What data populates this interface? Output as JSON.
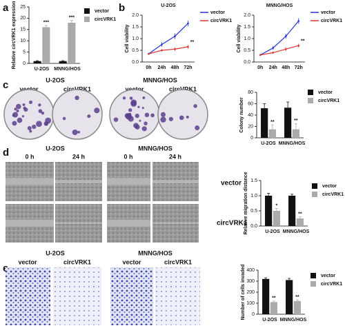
{
  "figure": {
    "panel_labels": [
      "a",
      "b",
      "c",
      "d",
      "e"
    ],
    "colony": {
      "groups": [
        "U-2OS",
        "MNNG/HOS"
      ],
      "conditions": [
        "vector",
        "circVRK1",
        "vector",
        "circVRK1"
      ]
    },
    "migration": {
      "groups": [
        "U-2OS",
        "MNNG/HOS"
      ],
      "times": [
        "0 h",
        "24 h",
        "0 h",
        "24 h"
      ],
      "rows": [
        "vector",
        "circVRK1"
      ]
    },
    "invasion": {
      "groups": [
        "U-2OS",
        "MNNG/HOS"
      ],
      "conditions": [
        "vector",
        "circVRK1",
        "vector",
        "circVRK1"
      ]
    }
  },
  "chart_data": [
    {
      "type": "bar",
      "y_label": "Relative circVRK1 expression",
      "categories": [
        "U-2OS",
        "MNNG/HOS"
      ],
      "series": [
        {
          "name": "vector",
          "color": "#111111",
          "values": [
            1,
            1
          ],
          "errors": [
            0.2,
            0.2
          ],
          "significance": [
            null,
            null
          ]
        },
        {
          "name": "circVRK1",
          "color": "#aaaaaa",
          "values": [
            16,
            18
          ],
          "errors": [
            0.8,
            1.0
          ],
          "significance": [
            "***",
            "***"
          ]
        }
      ],
      "ylim": [
        0,
        25
      ],
      "yticks": [
        0,
        5,
        10,
        15,
        20,
        25
      ]
    },
    {
      "type": "line",
      "title": "U-2OS",
      "y_label": "Cell viability",
      "categories": [
        "0h",
        "24h",
        "48h",
        "72h"
      ],
      "series": [
        {
          "name": "vector",
          "color": "#2233dd",
          "values": [
            0.35,
            0.75,
            1.1,
            1.65
          ],
          "errors": [
            0.03,
            0.1,
            0.12,
            0.12
          ],
          "significance": [
            null,
            null,
            null,
            null
          ]
        },
        {
          "name": "circVRK1",
          "color": "#e03030",
          "values": [
            0.35,
            0.5,
            0.55,
            0.65
          ],
          "errors": [
            0.03,
            0.05,
            0.08,
            0.08
          ],
          "significance": [
            null,
            null,
            null,
            "**"
          ]
        }
      ],
      "ylim": [
        0,
        2
      ],
      "yticks": [
        {
          "value": 0,
          "label": "0.0"
        },
        {
          "value": 0.5,
          "label": "0.5"
        },
        {
          "value": 1,
          "label": "1.0"
        },
        {
          "value": 1.5,
          "label": "1.5"
        },
        {
          "value": 2,
          "label": "2.0"
        }
      ]
    },
    {
      "type": "line",
      "title": "MNNG/HOS",
      "y_label": "Cell viability",
      "categories": [
        "0h",
        "24h",
        "48h",
        "72h"
      ],
      "series": [
        {
          "name": "vector",
          "color": "#2233dd",
          "values": [
            0.3,
            0.6,
            1.1,
            1.75
          ],
          "errors": [
            0.03,
            0.08,
            0.1,
            0.12
          ],
          "significance": [
            null,
            null,
            null,
            null
          ]
        },
        {
          "name": "circVRK1",
          "color": "#e03030",
          "values": [
            0.3,
            0.4,
            0.55,
            0.7
          ],
          "errors": [
            0.03,
            0.05,
            0.08,
            0.08
          ],
          "significance": [
            null,
            null,
            null,
            "**"
          ]
        }
      ],
      "ylim": [
        0,
        2
      ],
      "yticks": [
        {
          "value": 0,
          "label": "0.0"
        },
        {
          "value": 0.5,
          "label": "0.5"
        },
        {
          "value": 1,
          "label": "1.0"
        },
        {
          "value": 1.5,
          "label": "1.5"
        },
        {
          "value": 2,
          "label": "2.0"
        }
      ]
    },
    {
      "type": "bar",
      "y_label": "Colony number",
      "categories": [
        "U-2OS",
        "MNNG/HOS"
      ],
      "series": [
        {
          "name": "vector",
          "color": "#111111",
          "values": [
            52,
            53
          ],
          "errors": [
            8,
            10
          ],
          "significance": [
            null,
            null
          ]
        },
        {
          "name": "circVRK1",
          "color": "#aaaaaa",
          "values": [
            15,
            15
          ],
          "errors": [
            8,
            10
          ],
          "significance": [
            "**",
            "**"
          ]
        }
      ],
      "ylim": [
        0,
        80
      ],
      "yticks": [
        0,
        20,
        40,
        60,
        80
      ]
    },
    {
      "type": "bar",
      "y_label": "Relative migration distance",
      "categories": [
        "U-2OS",
        "MNNG/HOS"
      ],
      "series": [
        {
          "name": "vector",
          "color": "#111111",
          "values": [
            1.0,
            1.0
          ],
          "errors": [
            0.08,
            0.05
          ],
          "significance": [
            null,
            null
          ]
        },
        {
          "name": "circVRK1",
          "color": "#aaaaaa",
          "values": [
            0.5,
            0.25
          ],
          "errors": [
            0.08,
            0.05
          ],
          "significance": [
            "*",
            "**"
          ]
        }
      ],
      "ylim": [
        0,
        1.5
      ],
      "yticks": [
        {
          "value": 0,
          "label": "0.0"
        },
        {
          "value": 0.5,
          "label": "0.5"
        },
        {
          "value": 1,
          "label": "1.0"
        },
        {
          "value": 1.5,
          "label": "1.5"
        }
      ]
    },
    {
      "type": "bar",
      "y_label": "Number of cells invaded",
      "categories": [
        "U-2OS",
        "MNNG/HOS"
      ],
      "series": [
        {
          "name": "vector",
          "color": "#111111",
          "values": [
            320,
            310
          ],
          "errors": [
            10,
            15
          ],
          "significance": [
            null,
            null
          ]
        },
        {
          "name": "circVRK1",
          "color": "#aaaaaa",
          "values": [
            110,
            120
          ],
          "errors": [
            10,
            10
          ],
          "significance": [
            "**",
            "**"
          ]
        }
      ],
      "ylim": [
        0,
        400
      ],
      "yticks": [
        0,
        100,
        200,
        300,
        400
      ]
    }
  ]
}
